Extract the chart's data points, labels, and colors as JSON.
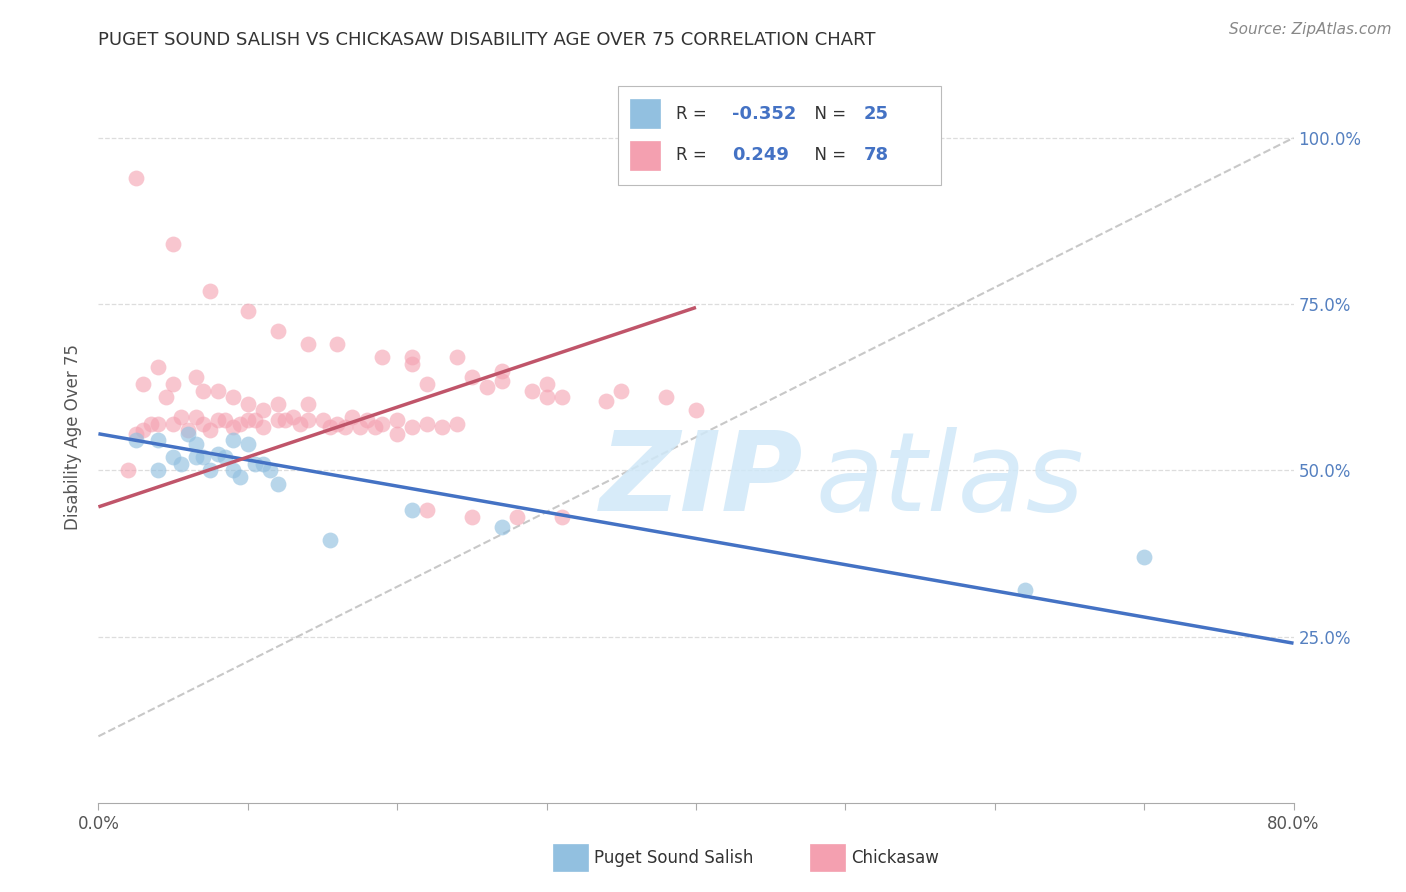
{
  "title": "PUGET SOUND SALISH VS CHICKASAW DISABILITY AGE OVER 75 CORRELATION CHART",
  "source": "Source: ZipAtlas.com",
  "ylabel": "Disability Age Over 75",
  "xlim": [
    0.0,
    0.8
  ],
  "ylim": [
    0.0,
    1.1
  ],
  "xtick_vals": [
    0.0,
    0.1,
    0.2,
    0.3,
    0.4,
    0.5,
    0.6,
    0.7,
    0.8
  ],
  "xtick_labels": [
    "0.0%",
    "",
    "",
    "",
    "",
    "",
    "",
    "",
    "80.0%"
  ],
  "ytick_vals_right": [
    0.25,
    0.5,
    0.75,
    1.0
  ],
  "ytick_labels_right": [
    "25.0%",
    "50.0%",
    "75.0%",
    "100.0%"
  ],
  "blue_color": "#92C0E0",
  "pink_color": "#F4A0B0",
  "blue_line_color": "#4472C4",
  "pink_line_color": "#C0556A",
  "ref_line_color": "#C8C8C8",
  "background_color": "#FFFFFF",
  "grid_color": "#DDDDDD",
  "blue_trend_x": [
    0.0,
    0.8
  ],
  "blue_trend_y": [
    0.555,
    0.24
  ],
  "pink_trend_x": [
    0.0,
    0.4
  ],
  "pink_trend_y": [
    0.445,
    0.745
  ],
  "ref_line_x": [
    0.0,
    0.8
  ],
  "ref_line_y": [
    0.1,
    1.0
  ],
  "blue_R": "-0.352",
  "blue_N": "25",
  "pink_R": "0.249",
  "pink_N": "78",
  "blue_scatter_x": [
    0.025,
    0.04,
    0.06,
    0.065,
    0.04,
    0.05,
    0.055,
    0.065,
    0.07,
    0.075,
    0.08,
    0.085,
    0.09,
    0.09,
    0.095,
    0.1,
    0.105,
    0.11,
    0.115,
    0.12,
    0.155,
    0.21,
    0.27,
    0.62,
    0.7
  ],
  "blue_scatter_y": [
    0.545,
    0.545,
    0.555,
    0.52,
    0.5,
    0.52,
    0.51,
    0.54,
    0.52,
    0.5,
    0.525,
    0.52,
    0.545,
    0.5,
    0.49,
    0.54,
    0.51,
    0.51,
    0.5,
    0.48,
    0.395,
    0.44,
    0.415,
    0.32,
    0.37
  ],
  "pink_scatter_x": [
    0.02,
    0.025,
    0.03,
    0.03,
    0.035,
    0.04,
    0.04,
    0.045,
    0.05,
    0.05,
    0.055,
    0.06,
    0.065,
    0.065,
    0.07,
    0.07,
    0.075,
    0.08,
    0.08,
    0.085,
    0.09,
    0.09,
    0.095,
    0.1,
    0.1,
    0.105,
    0.11,
    0.11,
    0.12,
    0.12,
    0.125,
    0.13,
    0.135,
    0.14,
    0.14,
    0.15,
    0.155,
    0.16,
    0.165,
    0.17,
    0.175,
    0.18,
    0.185,
    0.19,
    0.2,
    0.2,
    0.21,
    0.22,
    0.23,
    0.24,
    0.025,
    0.05,
    0.075,
    0.1,
    0.12,
    0.14,
    0.16,
    0.19,
    0.21,
    0.24,
    0.27,
    0.3,
    0.35,
    0.38,
    0.4,
    0.21,
    0.25,
    0.27,
    0.29,
    0.31,
    0.22,
    0.26,
    0.3,
    0.34,
    0.22,
    0.25,
    0.28,
    0.31
  ],
  "pink_scatter_y": [
    0.5,
    0.555,
    0.56,
    0.63,
    0.57,
    0.57,
    0.655,
    0.61,
    0.57,
    0.63,
    0.58,
    0.56,
    0.58,
    0.64,
    0.57,
    0.62,
    0.56,
    0.575,
    0.62,
    0.575,
    0.565,
    0.61,
    0.57,
    0.575,
    0.6,
    0.575,
    0.59,
    0.565,
    0.575,
    0.6,
    0.575,
    0.58,
    0.57,
    0.575,
    0.6,
    0.575,
    0.565,
    0.57,
    0.565,
    0.58,
    0.565,
    0.575,
    0.565,
    0.57,
    0.575,
    0.555,
    0.565,
    0.57,
    0.565,
    0.57,
    0.94,
    0.84,
    0.77,
    0.74,
    0.71,
    0.69,
    0.69,
    0.67,
    0.67,
    0.67,
    0.65,
    0.63,
    0.62,
    0.61,
    0.59,
    0.66,
    0.64,
    0.635,
    0.62,
    0.61,
    0.63,
    0.625,
    0.61,
    0.605,
    0.44,
    0.43,
    0.43,
    0.43
  ]
}
